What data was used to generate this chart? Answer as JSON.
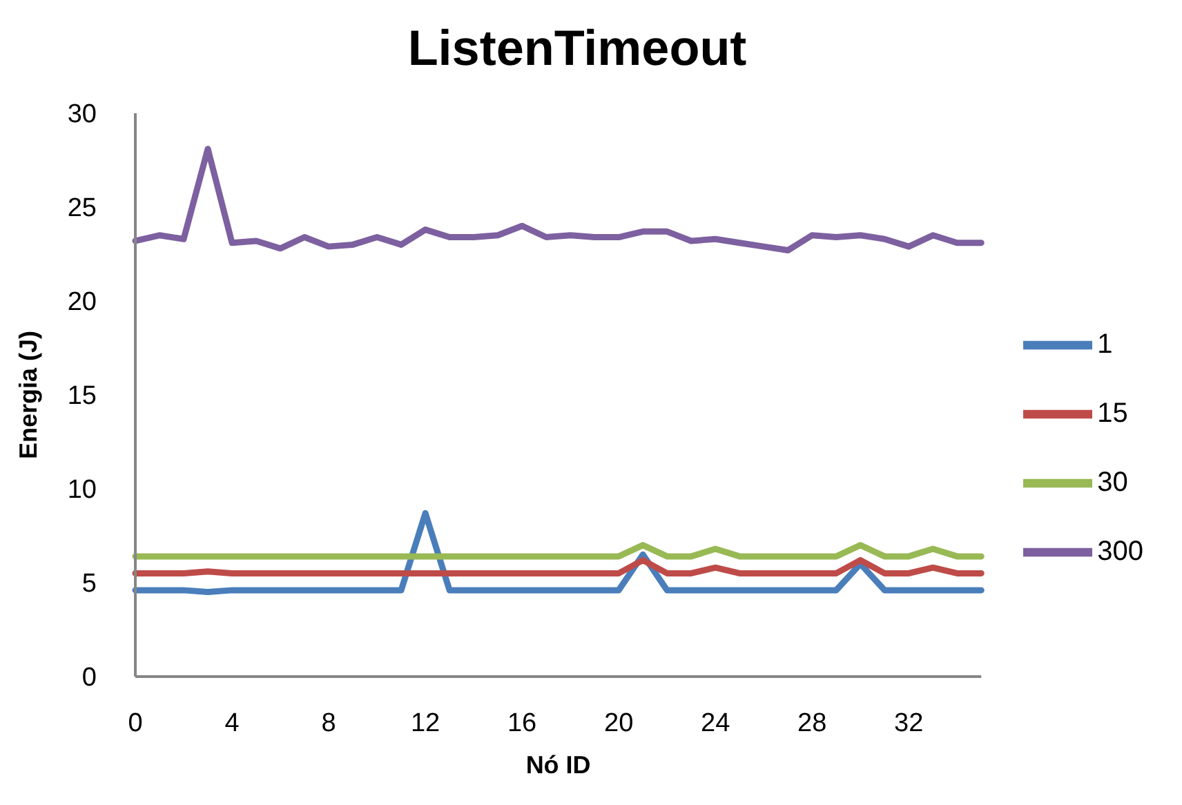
{
  "chart_data": {
    "type": "line",
    "title": "ListenTimeout",
    "xlabel": "Nó ID",
    "ylabel": "Energia (J)",
    "categories": [
      "0",
      null,
      null,
      null,
      "4",
      null,
      null,
      null,
      "8",
      null,
      null,
      null,
      "12",
      null,
      null,
      null,
      "16",
      null,
      null,
      null,
      "20",
      null,
      null,
      null,
      "24",
      null,
      null,
      null,
      "28",
      null,
      null,
      null,
      "32",
      null,
      null,
      null
    ],
    "series": [
      {
        "name": "1",
        "color": "#4a7ebb",
        "values": [
          4.6,
          4.6,
          4.6,
          4.5,
          4.6,
          4.6,
          4.6,
          4.6,
          4.6,
          4.6,
          4.6,
          4.6,
          8.7,
          4.6,
          4.6,
          4.6,
          4.6,
          4.6,
          4.6,
          4.6,
          4.6,
          6.5,
          4.6,
          4.6,
          4.6,
          4.6,
          4.6,
          4.6,
          4.6,
          4.6,
          6.0,
          4.6,
          4.6,
          4.6,
          4.6,
          4.6
        ]
      },
      {
        "name": "15",
        "color": "#be4b48",
        "values": [
          5.5,
          5.5,
          5.5,
          5.6,
          5.5,
          5.5,
          5.5,
          5.5,
          5.5,
          5.5,
          5.5,
          5.5,
          5.5,
          5.5,
          5.5,
          5.5,
          5.5,
          5.5,
          5.5,
          5.5,
          5.5,
          6.2,
          5.5,
          5.5,
          5.8,
          5.5,
          5.5,
          5.5,
          5.5,
          5.5,
          6.2,
          5.5,
          5.5,
          5.8,
          5.5,
          5.5
        ]
      },
      {
        "name": "30",
        "color": "#98b954",
        "values": [
          6.4,
          6.4,
          6.4,
          6.4,
          6.4,
          6.4,
          6.4,
          6.4,
          6.4,
          6.4,
          6.4,
          6.4,
          6.4,
          6.4,
          6.4,
          6.4,
          6.4,
          6.4,
          6.4,
          6.4,
          6.4,
          7.0,
          6.4,
          6.4,
          6.8,
          6.4,
          6.4,
          6.4,
          6.4,
          6.4,
          7.0,
          6.4,
          6.4,
          6.8,
          6.4,
          6.4
        ]
      },
      {
        "name": "300",
        "color": "#7d60a0",
        "values": [
          23.2,
          23.5,
          23.3,
          28.1,
          23.1,
          23.2,
          22.8,
          23.4,
          22.9,
          23.0,
          23.4,
          23.0,
          23.8,
          23.4,
          23.4,
          23.5,
          24.0,
          23.4,
          23.5,
          23.4,
          23.4,
          23.7,
          23.7,
          23.2,
          23.3,
          23.1,
          22.9,
          22.7,
          23.5,
          23.4,
          23.5,
          23.3,
          22.9,
          23.5,
          23.1,
          23.1
        ]
      }
    ],
    "ylim": [
      0,
      30
    ],
    "yticks": [
      0,
      5,
      10,
      15,
      20,
      25,
      30
    ],
    "grid": false,
    "legend": "right",
    "marker": "none",
    "line_style": "solid"
  }
}
